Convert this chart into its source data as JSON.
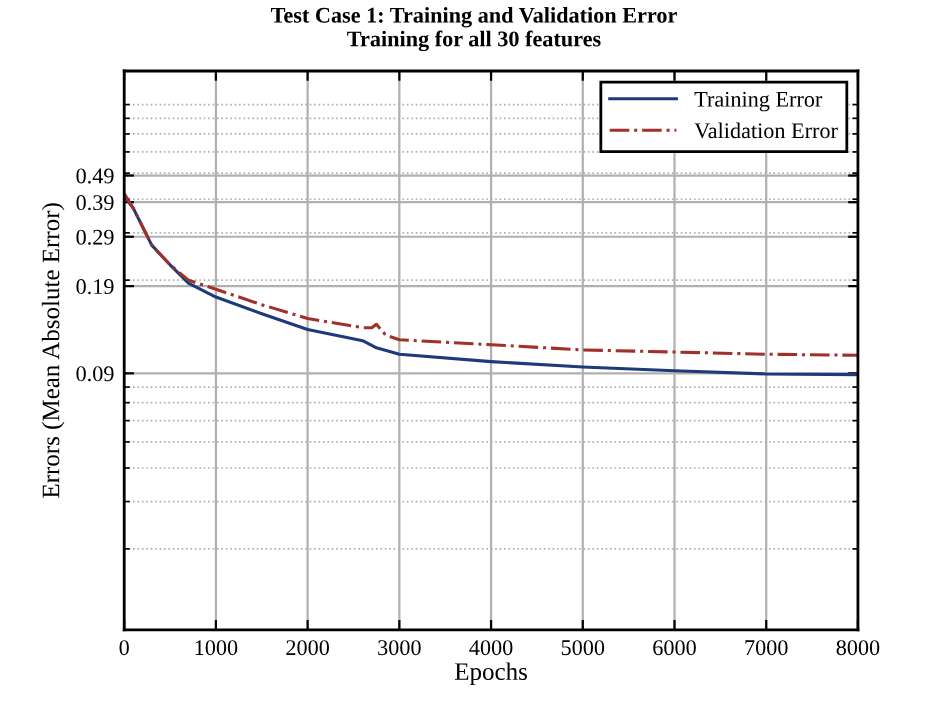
{
  "chart_data": {
    "type": "line",
    "title": "Test Case 1: Training and Validation Error",
    "subtitle": "Training for all 30 features",
    "xlabel": "Epochs",
    "ylabel": "Errors (Mean Absolute Error)",
    "series": [
      {
        "name": "Training Error",
        "color": "#1f3a7a",
        "line_style": "solid",
        "x": [
          0,
          100,
          300,
          500,
          700,
          1000,
          1500,
          2000,
          2600,
          2750,
          3000,
          4000,
          5000,
          6000,
          7000,
          8000
        ],
        "values": [
          0.41,
          0.37,
          0.27,
          0.228,
          0.195,
          0.173,
          0.15,
          0.131,
          0.119,
          0.112,
          0.106,
          0.0995,
          0.095,
          0.092,
          0.0895,
          0.089
        ]
      },
      {
        "name": "Validation Error",
        "color": "#a0302a",
        "line_style": "dashdot",
        "x": [
          0,
          100,
          300,
          500,
          700,
          1000,
          1500,
          2000,
          2600,
          2700,
          2750,
          2850,
          3000,
          4000,
          5000,
          6000,
          7000,
          8000
        ],
        "values": [
          0.42,
          0.37,
          0.27,
          0.228,
          0.2,
          0.185,
          0.162,
          0.144,
          0.133,
          0.133,
          0.137,
          0.125,
          0.12,
          0.115,
          0.11,
          0.108,
          0.106,
          0.105
        ]
      }
    ],
    "log": "y",
    "xlim": [
      0,
      8000
    ],
    "ylim": [
      0.01,
      1.2
    ],
    "xticks": [
      0,
      1000,
      2000,
      3000,
      4000,
      5000,
      6000,
      7000,
      8000
    ],
    "yticks": [
      0.09,
      0.19,
      0.29,
      0.39,
      0.49
    ],
    "grid": true,
    "legend": "top right"
  }
}
